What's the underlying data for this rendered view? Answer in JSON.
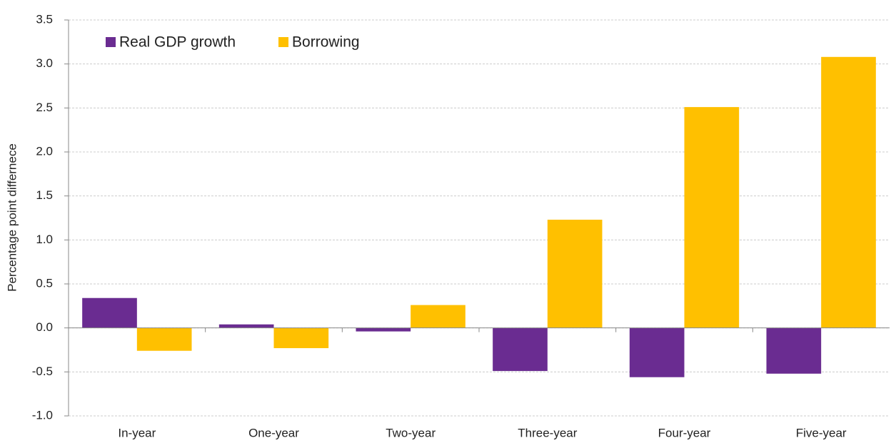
{
  "chart_data": {
    "type": "bar",
    "y_label": "Percentage point differnece",
    "categories": [
      "In-year",
      "One-year",
      "Two-year",
      "Three-year",
      "Four-year",
      "Five-year"
    ],
    "series": [
      {
        "name": "Real GDP growth",
        "color": "#6a2c91",
        "values": [
          0.34,
          0.04,
          -0.04,
          -0.49,
          -0.56,
          -0.52
        ]
      },
      {
        "name": "Borrowing",
        "color": "#ffc000",
        "values": [
          -0.26,
          -0.23,
          0.26,
          1.23,
          2.51,
          3.08
        ]
      }
    ],
    "ylim": [
      -1,
      3.5
    ],
    "yticks": [
      {
        "value": -1,
        "label": "-1.0"
      },
      -0.5,
      {
        "value": 0,
        "label": "0.0"
      },
      0.5,
      {
        "value": 1,
        "label": "1.0"
      },
      1.5,
      {
        "value": 2,
        "label": "2.0"
      },
      2.5,
      {
        "value": 3,
        "label": "3.0"
      },
      3.5
    ],
    "grid": true,
    "legend": "top-left"
  }
}
